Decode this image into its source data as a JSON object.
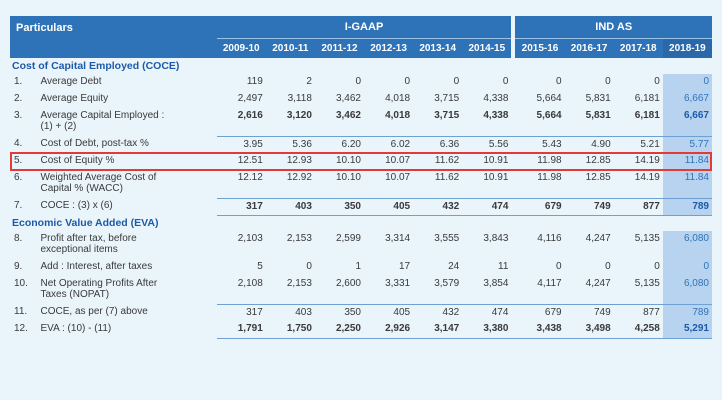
{
  "header": {
    "particulars": "Particulars",
    "group_igaap": "I-GAAP",
    "group_indas": "IND AS",
    "years_igaap": [
      "2009-10",
      "2010-11",
      "2011-12",
      "2012-13",
      "2013-14",
      "2014-15"
    ],
    "years_indas": [
      "2015-16",
      "2016-17",
      "2017-18",
      "2018-19"
    ]
  },
  "sections": {
    "coce": "Cost of Capital Employed (COCE)",
    "eva": "Economic Value Added (EVA)"
  },
  "rows": [
    {
      "no": "1.",
      "label": "Average Debt",
      "igaap": [
        "119",
        "2",
        "0",
        "0",
        "0",
        "0"
      ],
      "indas": [
        "0",
        "0",
        "0",
        "0"
      ]
    },
    {
      "no": "2.",
      "label": "Average Equity",
      "igaap": [
        "2,497",
        "3,118",
        "3,462",
        "4,018",
        "3,715",
        "4,338"
      ],
      "indas": [
        "5,664",
        "5,831",
        "6,181",
        "6,667"
      ]
    },
    {
      "no": "3.",
      "label": "Average Capital Employed :",
      "label2": "(1) + (2)",
      "igaap": [
        "2,616",
        "3,120",
        "3,462",
        "4,018",
        "3,715",
        "4,338"
      ],
      "indas": [
        "5,664",
        "5,831",
        "6,181",
        "6,667"
      ]
    },
    {
      "no": "4.",
      "label": "Cost of Debt, post-tax %",
      "igaap": [
        "3.95",
        "5.36",
        "6.20",
        "6.02",
        "6.36",
        "5.56"
      ],
      "indas": [
        "5.43",
        "4.90",
        "5.21",
        "5.77"
      ]
    },
    {
      "no": "5.",
      "label": "Cost of Equity %",
      "igaap": [
        "12.51",
        "12.93",
        "10.10",
        "10.07",
        "11.62",
        "10.91"
      ],
      "indas": [
        "11.98",
        "12.85",
        "14.19",
        "11.84"
      ]
    },
    {
      "no": "6.",
      "label": "Weighted Average Cost of",
      "label2": "Capital % (WACC)",
      "igaap": [
        "12.12",
        "12.92",
        "10.10",
        "10.07",
        "11.62",
        "10.91"
      ],
      "indas": [
        "11.98",
        "12.85",
        "14.19",
        "11.84"
      ]
    },
    {
      "no": "7.",
      "label": "COCE : (3) x (6)",
      "igaap": [
        "317",
        "403",
        "350",
        "405",
        "432",
        "474"
      ],
      "indas": [
        "679",
        "749",
        "877",
        "789"
      ]
    },
    {
      "no": "8.",
      "label": "Profit after tax, before",
      "label2": "exceptional items",
      "igaap": [
        "2,103",
        "2,153",
        "2,599",
        "3,314",
        "3,555",
        "3,843"
      ],
      "indas": [
        "4,116",
        "4,247",
        "5,135",
        "6,080"
      ]
    },
    {
      "no": "9.",
      "label": "Add : Interest, after taxes",
      "igaap": [
        "5",
        "0",
        "1",
        "17",
        "24",
        "11"
      ],
      "indas": [
        "0",
        "0",
        "0",
        "0"
      ]
    },
    {
      "no": "10.",
      "label": "Net Operating Profits After",
      "label2": "Taxes (NOPAT)",
      "igaap": [
        "2,108",
        "2,153",
        "2,600",
        "3,331",
        "3,579",
        "3,854"
      ],
      "indas": [
        "4,117",
        "4,247",
        "5,135",
        "6,080"
      ]
    },
    {
      "no": "11.",
      "label": "COCE, as per (7) above",
      "igaap": [
        "317",
        "403",
        "350",
        "405",
        "432",
        "474"
      ],
      "indas": [
        "679",
        "749",
        "877",
        "789"
      ]
    },
    {
      "no": "12.",
      "label": "EVA : (10) - (11)",
      "igaap": [
        "1,791",
        "1,750",
        "2,250",
        "2,926",
        "3,147",
        "3,380"
      ],
      "indas": [
        "3,438",
        "3,498",
        "4,258",
        "5,291"
      ]
    }
  ]
}
